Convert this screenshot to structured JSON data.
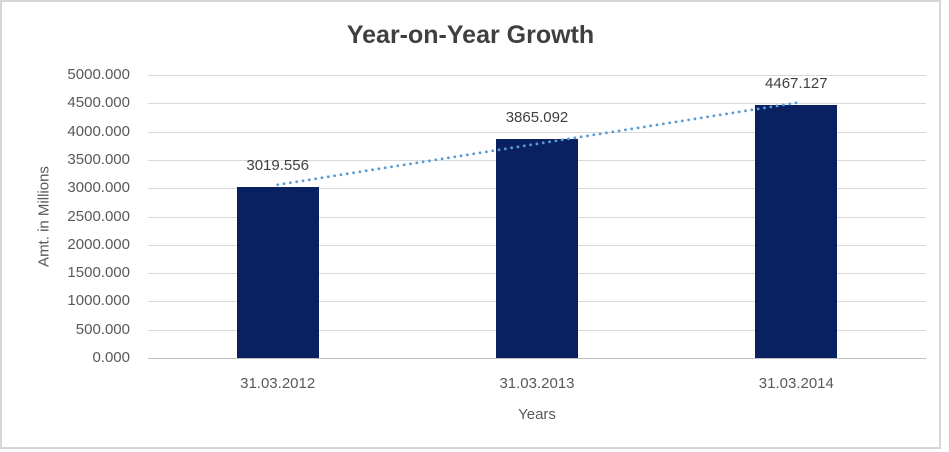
{
  "chart_data": {
    "type": "bar",
    "title": "Year-on-Year Growth",
    "xlabel": "Years",
    "ylabel": "Amt. in Millions",
    "categories": [
      "31.03.2012",
      "31.03.2013",
      "31.03.2014"
    ],
    "values": [
      3019.556,
      3865.092,
      4467.127
    ],
    "data_labels": [
      "3019.556",
      "3865.092",
      "4467.127"
    ],
    "ylim": [
      0,
      5000
    ],
    "y_tick_step": 500,
    "y_tick_labels": [
      "0.000",
      "500.000",
      "1000.000",
      "1500.000",
      "2000.000",
      "2500.000",
      "3000.000",
      "3500.000",
      "4000.000",
      "4500.000",
      "5000.000"
    ],
    "grid": true,
    "legend": false,
    "trendline": {
      "type": "linear",
      "style": "dotted",
      "color": "#5B9BD5"
    },
    "colors": {
      "bar": "#0A2161",
      "gridline": "#D9D9D9",
      "axis_line": "#BFBFBF",
      "border": "#D6D6D6"
    }
  }
}
